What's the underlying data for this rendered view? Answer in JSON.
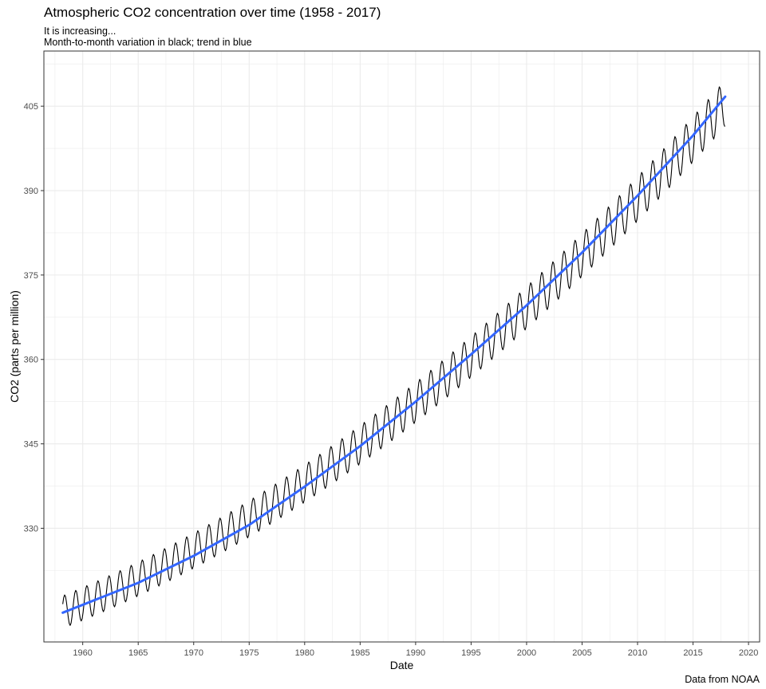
{
  "chart_data": {
    "type": "line",
    "title": "Atmospheric CO2 concentration over time (1958 - 2017)",
    "subtitle": [
      "It is increasing...",
      "Month-to-month variation in black; trend in blue"
    ],
    "caption": "Data from NOAA",
    "xlabel": "Date",
    "ylabel": "CO2 (parts per million)",
    "xlim": [
      1956.5,
      2021.0
    ],
    "ylim": [
      309.8,
      414.8
    ],
    "x_ticks": [
      1960,
      1965,
      1970,
      1975,
      1980,
      1985,
      1990,
      1995,
      2000,
      2005,
      2010,
      2015,
      2020
    ],
    "y_ticks": [
      330,
      345,
      360,
      375,
      390,
      405
    ],
    "grid": true,
    "colors": {
      "monthly": "#000000",
      "trend": "#3366ff",
      "grid": "#ebebeb",
      "panel_border": "#333333"
    },
    "series": [
      {
        "name": "",
        "style": "monthly",
        "x_start": 1958.2,
        "x_end": 2017.9,
        "trend_coeffs": [
          314.97,
          0.7736,
          0.01233
        ],
        "seasonal_amplitude": [
          2.9,
          4.1
        ],
        "peak_month_fraction": 0.37,
        "points": [
          [
            1958.2,
            316.0
          ],
          [
            1958.5,
            314.2
          ],
          [
            1958.8,
            313.5
          ],
          [
            1959.4,
            318.6
          ],
          [
            1961.4,
            320.8
          ],
          [
            1963.4,
            322.4
          ],
          [
            1965.4,
            323.5
          ],
          [
            1970.4,
            328.0
          ],
          [
            1975.4,
            333.0
          ],
          [
            1980.4,
            341.5
          ],
          [
            1985.4,
            347.5
          ],
          [
            1990.4,
            356.0
          ],
          [
            1995.4,
            363.5
          ],
          [
            2000.4,
            372.5
          ],
          [
            2005.4,
            382.0
          ],
          [
            2010.4,
            392.0
          ],
          [
            2015.4,
            403.0
          ],
          [
            2017.4,
            410.0
          ],
          [
            2017.9,
            406.5
          ]
        ]
      },
      {
        "name": "",
        "style": "trend",
        "x": [
          1958.2,
          1960,
          1965,
          1970,
          1975,
          1980,
          1985,
          1990,
          1995,
          2000,
          2005,
          2010,
          2015,
          2017.9
        ],
        "y": [
          315.0,
          316.4,
          320.3,
          325.1,
          330.6,
          337.4,
          344.6,
          352.5,
          360.9,
          369.6,
          379.0,
          389.1,
          399.8,
          406.7
        ]
      }
    ]
  }
}
